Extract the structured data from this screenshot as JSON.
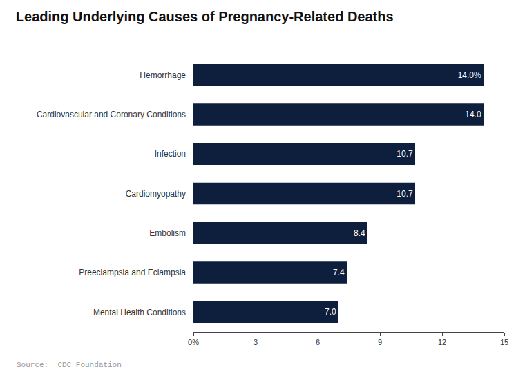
{
  "chart_data": {
    "type": "bar",
    "orientation": "horizontal",
    "title": "Leading Underlying Causes of Pregnancy-Related Deaths",
    "source": "Source:  CDC Foundation",
    "categories": [
      "Mental Health Conditions",
      "Preeclampsia and Eclampsia",
      "Embolism",
      "Cardiomyopathy",
      "Infection",
      "Cardiovascular and Coronary Conditions",
      "Hemorrhage"
    ],
    "values": [
      7.0,
      7.4,
      8.4,
      10.7,
      10.7,
      14.0,
      14.0
    ],
    "value_labels": [
      "7.0",
      "7.4",
      "8.4",
      "10.7",
      "10.7",
      "14.0",
      "14.0%"
    ],
    "data_labels": true,
    "color": "#0d1f3c",
    "xlim": [
      0,
      15
    ],
    "xticks": [
      {
        "value": 0,
        "label": "0%"
      },
      3,
      6,
      9,
      12,
      15
    ],
    "grid": false
  }
}
